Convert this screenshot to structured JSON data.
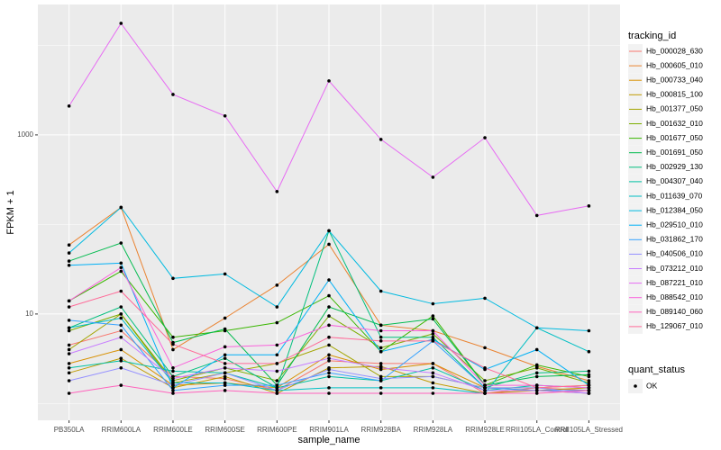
{
  "chart_data": {
    "type": "line",
    "log_y": true,
    "x_label": "sample_name",
    "y_label": "FPKM + 1",
    "categories": [
      "PB350LA",
      "RRIM600LA",
      "RRIM600LE",
      "RRIM600SE",
      "RRIM600PE",
      "RRIM901LA",
      "RRIM928BA",
      "RRIM928LA",
      "RRIM928LE",
      "RRII105LA_Control",
      "RRII105LA_Stressed"
    ],
    "ylim": [
      0.65,
      28600
    ],
    "yticks": [
      10,
      1000
    ],
    "minor_yticks": [
      1,
      100,
      10000
    ],
    "grid": true,
    "legend_position": "right",
    "legend_title": "tracking_id",
    "point_color": "#000000",
    "quant_status_legend": {
      "title": "quant_status",
      "labels": [
        "OK"
      ]
    },
    "series": [
      {
        "name": "Hb_000028_630",
        "color": "#F8766D",
        "values": [
          4.5,
          6.5,
          2.0,
          1.9,
          1.4,
          3.0,
          2.8,
          2.8,
          1.3,
          1.5,
          1.4
        ]
      },
      {
        "name": "Hb_000605_010",
        "color": "#EA8331",
        "values": [
          59,
          155,
          4.0,
          9.0,
          21,
          60,
          7.5,
          6.5,
          4.2,
          2.6,
          1.8
        ]
      },
      {
        "name": "Hb_000733_040",
        "color": "#D89000",
        "values": [
          2.8,
          4.0,
          1.6,
          1.7,
          1.5,
          3.5,
          2.4,
          2.8,
          1.5,
          1.5,
          1.6
        ]
      },
      {
        "name": "Hb_000815_100",
        "color": "#C09B00",
        "values": [
          2.2,
          3.2,
          1.5,
          2.0,
          1.3,
          2.5,
          2.6,
          1.7,
          1.3,
          1.4,
          1.5
        ]
      },
      {
        "name": "Hb_001377_050",
        "color": "#A3A500",
        "values": [
          4.0,
          10,
          1.7,
          2.2,
          2.8,
          4.5,
          2.0,
          2.0,
          1.5,
          1.4,
          1.3
        ]
      },
      {
        "name": "Hb_001632_010",
        "color": "#7CAE00",
        "values": [
          6.5,
          10,
          1.8,
          2.5,
          1.8,
          9.5,
          4.2,
          6.0,
          1.8,
          2.5,
          1.7
        ]
      },
      {
        "name": "Hb_001677_050",
        "color": "#39B600",
        "values": [
          14,
          30,
          5.5,
          6.5,
          8,
          16,
          3.8,
          9.5,
          1.6,
          2.7,
          2.0
        ]
      },
      {
        "name": "Hb_001691_050",
        "color": "#00BB4E",
        "values": [
          39,
          62,
          4.8,
          6.8,
          1.6,
          12,
          7.5,
          8.8,
          1.6,
          2.0,
          2.1
        ]
      },
      {
        "name": "Hb_002929_130",
        "color": "#00BF7D",
        "values": [
          7,
          12,
          2.0,
          3.2,
          1.5,
          85,
          5.5,
          5.5,
          1.5,
          2.2,
          2.3
        ]
      },
      {
        "name": "Hb_004307_040",
        "color": "#00C1A3",
        "values": [
          2.5,
          3.0,
          2.3,
          2.2,
          1.5,
          2.0,
          1.8,
          2.5,
          1.4,
          1.6,
          1.5
        ]
      },
      {
        "name": "Hb_011639_070",
        "color": "#00BFC4",
        "values": [
          7,
          9,
          1.7,
          1.7,
          1.4,
          1.5,
          1.5,
          1.5,
          1.3,
          7.0,
          3.8
        ]
      },
      {
        "name": "Hb_012384_050",
        "color": "#00BAE0",
        "values": [
          48,
          155,
          25,
          28,
          12,
          85,
          18,
          13,
          15,
          7,
          6.5
        ]
      },
      {
        "name": "Hb_029510_010",
        "color": "#00B0F6",
        "values": [
          35,
          37,
          1.5,
          3.5,
          3.5,
          24,
          3.8,
          5.2,
          2.4,
          4.0,
          1.6
        ]
      },
      {
        "name": "Hb_031862_170",
        "color": "#35A2FF",
        "values": [
          8.5,
          7.5,
          1.4,
          1.6,
          1.6,
          2.2,
          1.8,
          5.0,
          1.5,
          1.4,
          1.4
        ]
      },
      {
        "name": "Hb_040506_010",
        "color": "#9590FF",
        "values": [
          1.8,
          2.5,
          1.6,
          2.2,
          1.4,
          2.4,
          1.9,
          2.0,
          1.5,
          1.5,
          1.3
        ]
      },
      {
        "name": "Hb_073212_010",
        "color": "#C77CFF",
        "values": [
          3.6,
          5.5,
          1.9,
          2.5,
          2.3,
          3.2,
          2.5,
          2.2,
          1.4,
          1.4,
          1.3
        ]
      },
      {
        "name": "Hb_087221_010",
        "color": "#E76BF3",
        "values": [
          2100,
          17600,
          2830,
          1630,
          233,
          4010,
          890,
          337,
          930,
          126,
          161
        ]
      },
      {
        "name": "Hb_088542_010",
        "color": "#FA62DB",
        "values": [
          14,
          33,
          2.5,
          4.3,
          4.5,
          7.5,
          6.5,
          6.5,
          1.6,
          1.6,
          1.5
        ]
      },
      {
        "name": "Hb_089140_060",
        "color": "#FF62BC",
        "values": [
          1.3,
          1.6,
          1.3,
          1.4,
          1.3,
          1.3,
          1.3,
          1.3,
          1.3,
          1.3,
          1.4
        ]
      },
      {
        "name": "Hb_129067_010",
        "color": "#FF6A98",
        "values": [
          12,
          18,
          4.6,
          2.8,
          2.8,
          5.5,
          5.0,
          5.0,
          2.5,
          1.5,
          1.6
        ]
      }
    ]
  }
}
